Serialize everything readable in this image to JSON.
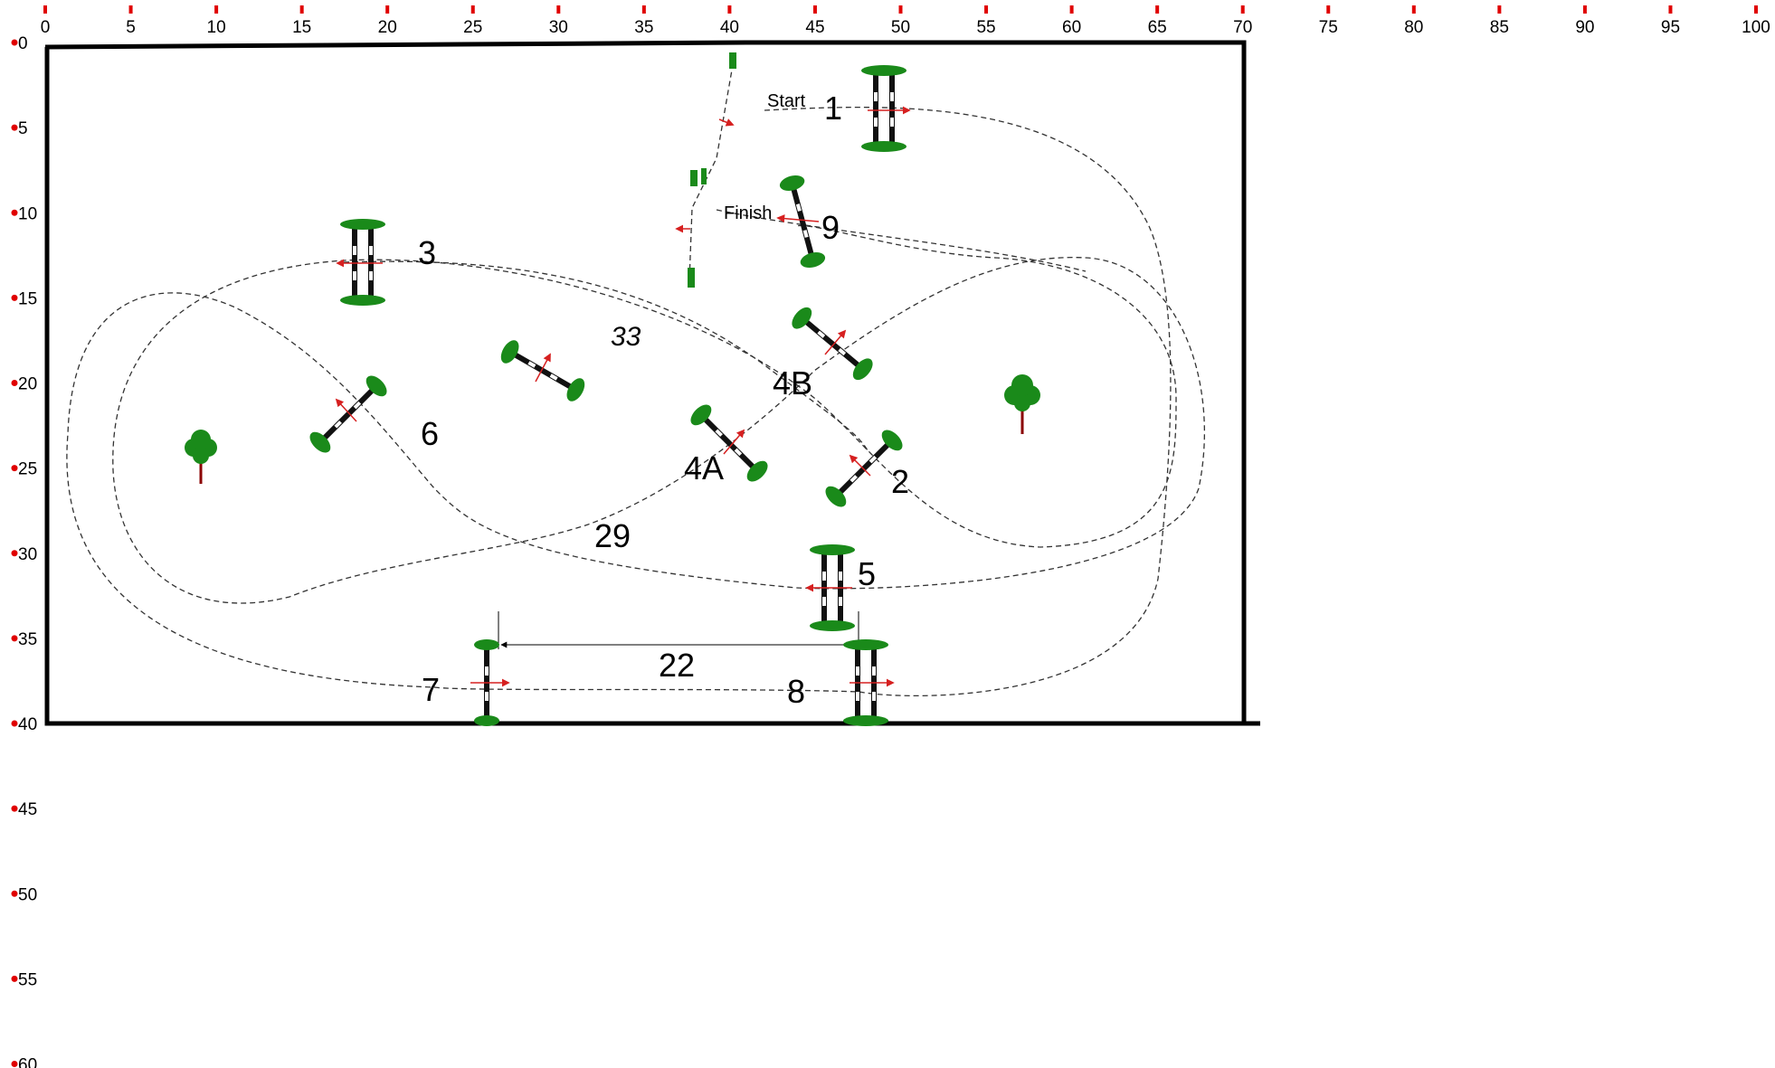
{
  "ruler": {
    "top_ticks": [
      "0",
      "5",
      "10",
      "15",
      "20",
      "25",
      "30",
      "35",
      "40",
      "45",
      "50",
      "55",
      "60",
      "65",
      "70",
      "75",
      "80",
      "85",
      "90",
      "95",
      "100"
    ],
    "left_ticks": [
      "0",
      "5",
      "10",
      "15",
      "20",
      "25",
      "30",
      "35",
      "40",
      "45",
      "50",
      "55",
      "60"
    ],
    "tick_color": "#e00000"
  },
  "arena": {
    "width_units": 70,
    "height_units": 40
  },
  "labels": {
    "start": "Start",
    "finish": "Finish",
    "distance_22": "22",
    "distance_33": "33",
    "distance_29": "29"
  },
  "fences": [
    {
      "id": "1",
      "label": "1",
      "type": "oxer"
    },
    {
      "id": "2",
      "label": "2",
      "type": "vertical"
    },
    {
      "id": "3",
      "label": "3",
      "type": "oxer"
    },
    {
      "id": "4A",
      "label": "4A",
      "type": "vertical"
    },
    {
      "id": "4B",
      "label": "4B",
      "type": "vertical"
    },
    {
      "id": "5",
      "label": "5",
      "type": "oxer"
    },
    {
      "id": "6",
      "label": "6",
      "type": "vertical"
    },
    {
      "id": "7",
      "label": "7",
      "type": "vertical"
    },
    {
      "id": "8",
      "label": "8",
      "type": "oxer"
    },
    {
      "id": "9",
      "label": "9",
      "type": "vertical"
    }
  ],
  "colors": {
    "fence_green": "#1a8a1a",
    "arrow_red": "#d62020",
    "tree_trunk": "#8b0000",
    "border": "#000000"
  }
}
